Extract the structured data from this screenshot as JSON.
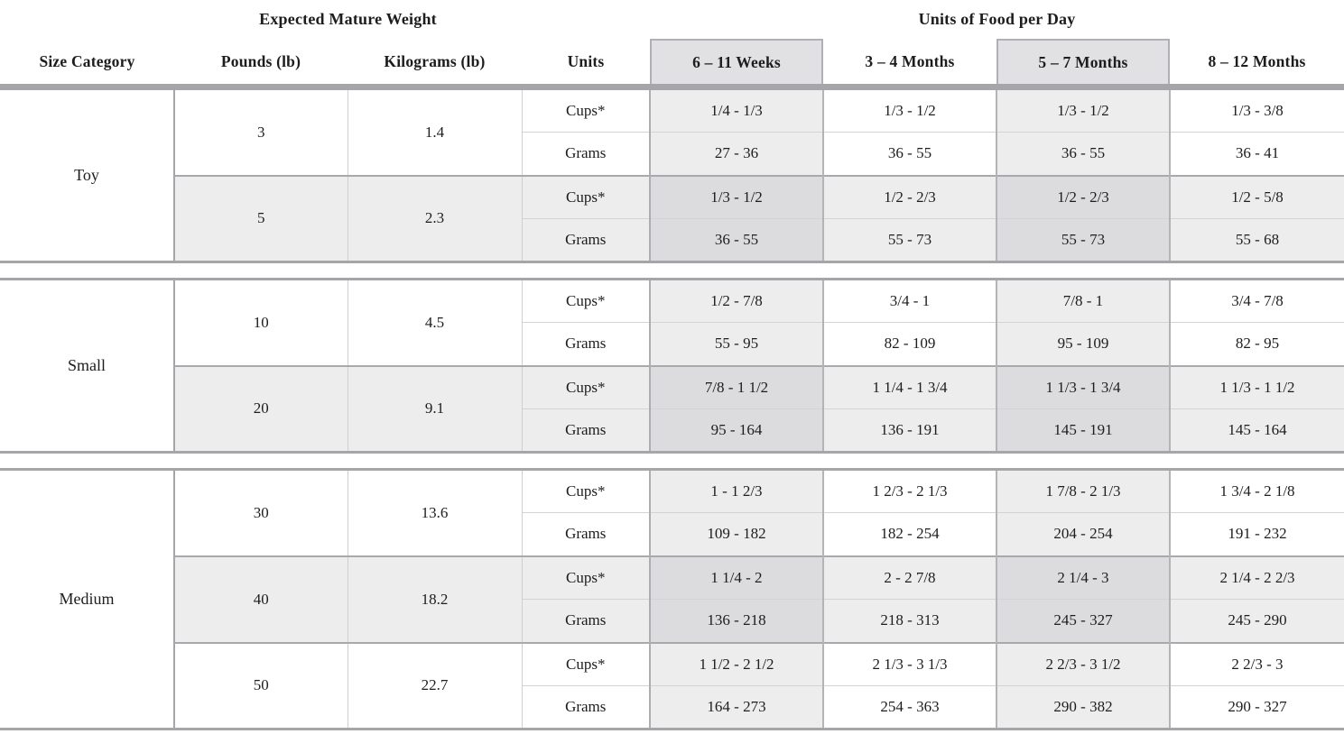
{
  "header": {
    "group1_title": "Expected Mature Weight",
    "group2_title": "Units of Food per Day",
    "columns": {
      "size_category": "Size Category",
      "pounds": "Pounds (lb)",
      "kilograms": "Kilograms (lb)",
      "units": "Units"
    },
    "periods": [
      {
        "label": "6 – 11 Weeks",
        "shaded": true
      },
      {
        "label": "3 – 4 Months",
        "shaded": false
      },
      {
        "label": "5 – 7 Months",
        "shaded": true
      },
      {
        "label": "8 – 12 Months",
        "shaded": false
      }
    ]
  },
  "units_labels": {
    "cups": "Cups*",
    "grams": "Grams"
  },
  "colors": {
    "border_strong": "#a6a6aa",
    "border_light": "#d3d3d5",
    "shade_light": "#ededee",
    "shade_dark": "#dcdcde",
    "header_box_fill": "#e1e1e3",
    "text": "#1d1d1f"
  },
  "sections": [
    {
      "size_category": "Toy",
      "groups": [
        {
          "pounds": "3",
          "kilograms": "1.4",
          "shaded_row": false,
          "cups": [
            "1/4 - 1/3",
            "1/3 - 1/2",
            "1/3 - 1/2",
            "1/3 - 3/8"
          ],
          "grams": [
            "27 - 36",
            "36 - 55",
            "36 - 55",
            "36 - 41"
          ]
        },
        {
          "pounds": "5",
          "kilograms": "2.3",
          "shaded_row": true,
          "cups": [
            "1/3 - 1/2",
            "1/2 - 2/3",
            "1/2 - 2/3",
            "1/2 - 5/8"
          ],
          "grams": [
            "36 - 55",
            "55 - 73",
            "55 - 73",
            "55 - 68"
          ]
        }
      ]
    },
    {
      "size_category": "Small",
      "groups": [
        {
          "pounds": "10",
          "kilograms": "4.5",
          "shaded_row": false,
          "cups": [
            "1/2 - 7/8",
            "3/4 - 1",
            "7/8 - 1",
            "3/4 - 7/8"
          ],
          "grams": [
            "55 - 95",
            "82 - 109",
            "95 - 109",
            "82 - 95"
          ]
        },
        {
          "pounds": "20",
          "kilograms": "9.1",
          "shaded_row": true,
          "cups": [
            "7/8 - 1 1/2",
            "1 1/4 - 1 3/4",
            "1 1/3 - 1 3/4",
            "1 1/3 - 1 1/2"
          ],
          "grams": [
            "95 - 164",
            "136 - 191",
            "145 - 191",
            "145 - 164"
          ]
        }
      ]
    },
    {
      "size_category": "Medium",
      "groups": [
        {
          "pounds": "30",
          "kilograms": "13.6",
          "shaded_row": false,
          "cups": [
            "1 - 1 2/3",
            "1 2/3 - 2 1/3",
            "1 7/8 - 2 1/3",
            "1 3/4 - 2 1/8"
          ],
          "grams": [
            "109 - 182",
            "182 - 254",
            "204 - 254",
            "191 - 232"
          ]
        },
        {
          "pounds": "40",
          "kilograms": "18.2",
          "shaded_row": true,
          "cups": [
            "1 1/4 - 2",
            "2 - 2 7/8",
            "2 1/4 - 3",
            "2 1/4 - 2 2/3"
          ],
          "grams": [
            "136 - 218",
            "218 - 313",
            "245 - 327",
            "245 - 290"
          ]
        },
        {
          "pounds": "50",
          "kilograms": "22.7",
          "shaded_row": false,
          "cups": [
            "1 1/2 - 2 1/2",
            "2 1/3 - 3 1/3",
            "2 2/3 - 3 1/2",
            "2 2/3 - 3"
          ],
          "grams": [
            "164 - 273",
            "254 - 363",
            "290 - 382",
            "290 - 327"
          ]
        }
      ]
    }
  ]
}
